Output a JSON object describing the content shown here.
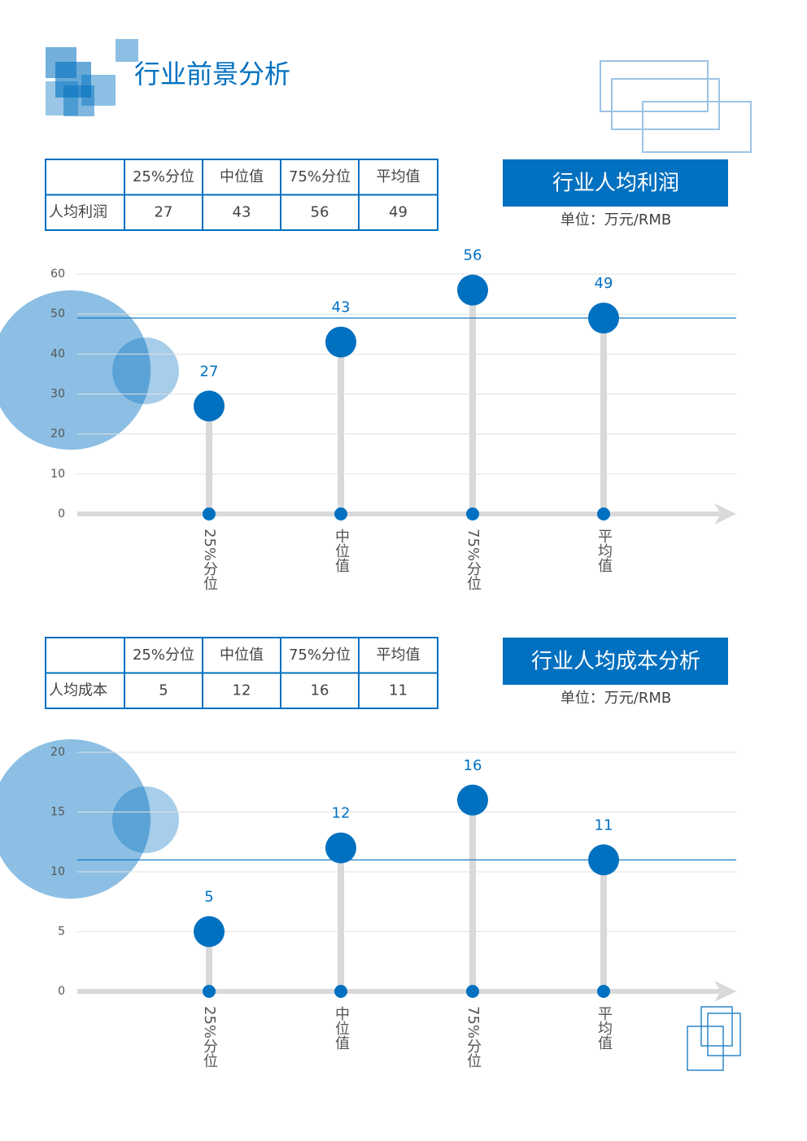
{
  "title": "行业前景分析",
  "tables": [
    {
      "header": [
        "25%分位",
        "中位值",
        "75%分位",
        "平均值"
      ],
      "rows": [
        {
          "label": "人均利润",
          "values": [
            27,
            43,
            56,
            49
          ]
        }
      ]
    },
    {
      "header": [
        "25%分位",
        "中位值",
        "75%分位",
        "平均值"
      ],
      "rows": [
        {
          "label": "人均成本",
          "values": [
            5,
            12,
            16,
            11
          ]
        }
      ]
    }
  ],
  "panels": [
    {
      "title": "行业人均利润",
      "unit": "单位：万元/RMB"
    },
    {
      "title": "行业人均成本分析",
      "unit": "单位：万元/RMB"
    }
  ],
  "chart_data": [
    {
      "type": "lollipop",
      "categories": [
        "25%分位",
        "中位值",
        "75%分位",
        "平均值"
      ],
      "values": [
        27,
        43,
        56,
        49
      ],
      "color": "#0070c0",
      "ylim": [
        0,
        60
      ],
      "yticks": [
        0,
        10,
        20,
        30,
        40,
        50,
        60
      ],
      "grid": true
    },
    {
      "type": "lollipop",
      "categories": [
        "25%分位",
        "中位值",
        "75%分位",
        "平均值"
      ],
      "values": [
        5,
        12,
        16,
        11
      ],
      "color": "#0070c0",
      "ylim": [
        0,
        20
      ],
      "yticks": [
        0,
        5,
        10,
        15,
        20
      ],
      "grid": true
    }
  ]
}
